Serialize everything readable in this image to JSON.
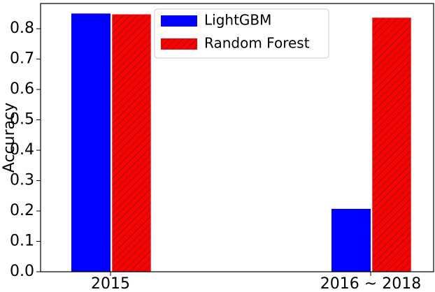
{
  "chart_data": {
    "type": "bar",
    "y_label": "Accuracy",
    "categories": [
      "2015",
      "2016 ~ 2018"
    ],
    "series": [
      {
        "name": "LightGBM",
        "color": "#0000ff",
        "values": [
          0.85,
          0.207
        ]
      },
      {
        "name": "Random Forest",
        "color": "#ff0000",
        "hatch": "////",
        "values": [
          0.848,
          0.837
        ]
      }
    ],
    "ylim": [
      0,
      0.883
    ],
    "yticks": [
      {
        "value": 0,
        "label": "0.0"
      },
      0.1,
      0.2,
      0.3,
      0.4,
      0.5,
      0.6,
      0.7,
      0.8
    ],
    "grid": false,
    "legend": "upper center"
  }
}
